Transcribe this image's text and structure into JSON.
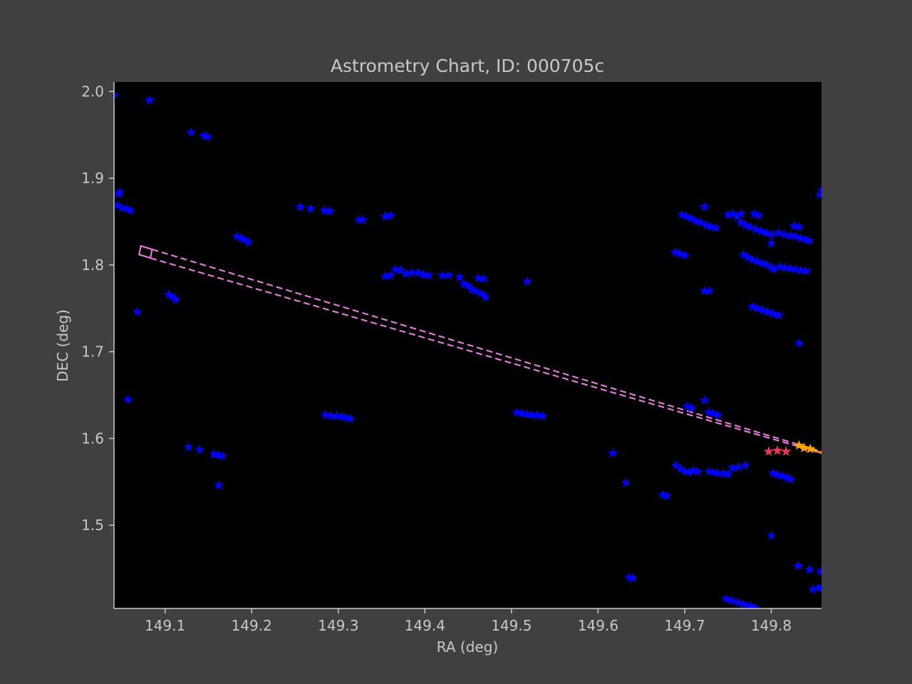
{
  "chart_data": {
    "type": "scatter",
    "title": "Astrometry Chart, ID: 000705c",
    "xlabel": "RA (deg)",
    "ylabel": "DEC (deg)",
    "xlim": [
      149.041,
      149.858
    ],
    "ylim": [
      1.404,
      2.011
    ],
    "xticks": [
      149.1,
      149.2,
      149.3,
      149.4,
      149.5,
      149.6,
      149.7,
      149.8
    ],
    "xtick_labels": [
      "149.1",
      "149.2",
      "149.3",
      "149.4",
      "149.5",
      "149.6",
      "149.7",
      "149.8"
    ],
    "yticks": [
      1.5,
      1.6,
      1.7,
      1.8,
      1.9,
      2.0
    ],
    "ytick_labels": [
      "1.5",
      "1.6",
      "1.7",
      "1.8",
      "1.9",
      "2.0"
    ],
    "plot_background": "#000000",
    "grid": false,
    "colors": {
      "stars": "#0000ff",
      "target_highlight": "#e8365a",
      "track_end": "#ffa500",
      "footprint": "#e07ad8",
      "figure_background": "#404040",
      "text": "#c8c8c8"
    },
    "series": [
      {
        "marker": "star",
        "color": "#0000ff",
        "points": [
          [
            149.041,
            1.996
          ],
          [
            149.082,
            1.99
          ],
          [
            149.13,
            1.953
          ],
          [
            149.145,
            1.949
          ],
          [
            149.149,
            1.948
          ],
          [
            149.046,
            1.882
          ],
          [
            149.048,
            1.884
          ],
          [
            149.045,
            1.869
          ],
          [
            149.05,
            1.866
          ],
          [
            149.055,
            1.865
          ],
          [
            149.06,
            1.863
          ],
          [
            149.068,
            1.746
          ],
          [
            149.057,
            1.645
          ],
          [
            149.104,
            1.766
          ],
          [
            149.108,
            1.764
          ],
          [
            149.112,
            1.76
          ],
          [
            149.183,
            1.833
          ],
          [
            149.188,
            1.831
          ],
          [
            149.192,
            1.829
          ],
          [
            149.196,
            1.826
          ],
          [
            149.127,
            1.59
          ],
          [
            149.14,
            1.587
          ],
          [
            149.156,
            1.582
          ],
          [
            149.162,
            1.581
          ],
          [
            149.166,
            1.58
          ],
          [
            149.162,
            1.546
          ],
          [
            149.256,
            1.867
          ],
          [
            149.268,
            1.865
          ],
          [
            149.284,
            1.863
          ],
          [
            149.29,
            1.862
          ],
          [
            149.324,
            1.852
          ],
          [
            149.328,
            1.852
          ],
          [
            149.354,
            1.856
          ],
          [
            149.36,
            1.857
          ],
          [
            149.285,
            1.627
          ],
          [
            149.292,
            1.626
          ],
          [
            149.298,
            1.626
          ],
          [
            149.304,
            1.625
          ],
          [
            149.309,
            1.624
          ],
          [
            149.314,
            1.623
          ],
          [
            149.354,
            1.787
          ],
          [
            149.36,
            1.788
          ],
          [
            149.366,
            1.795
          ],
          [
            149.372,
            1.794
          ],
          [
            149.378,
            1.79
          ],
          [
            149.385,
            1.791
          ],
          [
            149.392,
            1.791
          ],
          [
            149.398,
            1.789
          ],
          [
            149.404,
            1.788
          ],
          [
            149.42,
            1.788
          ],
          [
            149.427,
            1.788
          ],
          [
            149.44,
            1.786
          ],
          [
            149.445,
            1.778
          ],
          [
            149.45,
            1.776
          ],
          [
            149.454,
            1.772
          ],
          [
            149.458,
            1.77
          ],
          [
            149.462,
            1.785
          ],
          [
            149.468,
            1.784
          ],
          [
            149.465,
            1.767
          ],
          [
            149.47,
            1.763
          ],
          [
            149.518,
            1.781
          ],
          [
            149.506,
            1.63
          ],
          [
            149.512,
            1.629
          ],
          [
            149.518,
            1.628
          ],
          [
            149.524,
            1.627
          ],
          [
            149.53,
            1.627
          ],
          [
            149.536,
            1.626
          ],
          [
            149.617,
            1.583
          ],
          [
            149.632,
            1.549
          ],
          [
            149.636,
            1.44
          ],
          [
            149.64,
            1.439
          ],
          [
            149.675,
            1.535
          ],
          [
            149.679,
            1.534
          ],
          [
            149.697,
            1.858
          ],
          [
            149.702,
            1.856
          ],
          [
            149.707,
            1.854
          ],
          [
            149.712,
            1.851
          ],
          [
            149.718,
            1.849
          ],
          [
            149.723,
            1.867
          ],
          [
            149.725,
            1.846
          ],
          [
            149.73,
            1.844
          ],
          [
            149.736,
            1.843
          ],
          [
            149.689,
            1.815
          ],
          [
            149.694,
            1.813
          ],
          [
            149.7,
            1.811
          ],
          [
            149.723,
            1.77
          ],
          [
            149.728,
            1.77
          ],
          [
            149.75,
            1.858
          ],
          [
            149.755,
            1.859
          ],
          [
            149.76,
            1.856
          ],
          [
            149.765,
            1.859
          ],
          [
            149.78,
            1.859
          ],
          [
            149.785,
            1.857
          ],
          [
            149.765,
            1.849
          ],
          [
            149.77,
            1.846
          ],
          [
            149.775,
            1.844
          ],
          [
            149.782,
            1.841
          ],
          [
            149.788,
            1.839
          ],
          [
            149.794,
            1.837
          ],
          [
            149.8,
            1.835
          ],
          [
            149.8,
            1.825
          ],
          [
            149.808,
            1.837
          ],
          [
            149.815,
            1.835
          ],
          [
            149.822,
            1.834
          ],
          [
            149.826,
            1.845
          ],
          [
            149.832,
            1.844
          ],
          [
            149.828,
            1.833
          ],
          [
            149.834,
            1.831
          ],
          [
            149.84,
            1.829
          ],
          [
            149.844,
            1.828
          ],
          [
            149.768,
            1.812
          ],
          [
            149.773,
            1.809
          ],
          [
            149.778,
            1.806
          ],
          [
            149.784,
            1.804
          ],
          [
            149.79,
            1.802
          ],
          [
            149.795,
            1.8
          ],
          [
            149.8,
            1.797
          ],
          [
            149.803,
            1.795
          ],
          [
            149.81,
            1.798
          ],
          [
            149.816,
            1.797
          ],
          [
            149.822,
            1.796
          ],
          [
            149.828,
            1.795
          ],
          [
            149.834,
            1.794
          ],
          [
            149.84,
            1.793
          ],
          [
            149.778,
            1.752
          ],
          [
            149.784,
            1.75
          ],
          [
            149.79,
            1.748
          ],
          [
            149.796,
            1.746
          ],
          [
            149.802,
            1.744
          ],
          [
            149.808,
            1.742
          ],
          [
            149.832,
            1.71
          ],
          [
            149.856,
            1.881
          ],
          [
            149.859,
            1.887
          ],
          [
            149.723,
            1.644
          ],
          [
            149.703,
            1.637
          ],
          [
            149.708,
            1.635
          ],
          [
            149.728,
            1.63
          ],
          [
            149.733,
            1.629
          ],
          [
            149.738,
            1.627
          ],
          [
            149.69,
            1.569
          ],
          [
            149.695,
            1.565
          ],
          [
            149.7,
            1.562
          ],
          [
            149.705,
            1.561
          ],
          [
            149.71,
            1.563
          ],
          [
            149.715,
            1.562
          ],
          [
            149.728,
            1.562
          ],
          [
            149.733,
            1.561
          ],
          [
            149.738,
            1.56
          ],
          [
            149.745,
            1.56
          ],
          [
            149.75,
            1.559
          ],
          [
            149.755,
            1.566
          ],
          [
            149.762,
            1.567
          ],
          [
            149.77,
            1.569
          ],
          [
            149.802,
            1.56
          ],
          [
            149.807,
            1.558
          ],
          [
            149.812,
            1.557
          ],
          [
            149.818,
            1.555
          ],
          [
            149.822,
            1.553
          ],
          [
            149.8,
            1.488
          ],
          [
            149.831,
            1.453
          ],
          [
            149.844,
            1.449
          ],
          [
            149.857,
            1.447
          ],
          [
            149.848,
            1.426
          ],
          [
            149.855,
            1.428
          ],
          [
            149.748,
            1.415
          ],
          [
            149.755,
            1.413
          ],
          [
            149.762,
            1.411
          ],
          [
            149.768,
            1.409
          ],
          [
            149.775,
            1.407
          ],
          [
            149.781,
            1.405
          ]
        ]
      },
      {
        "marker": "star",
        "color": "#e8365a",
        "points": [
          [
            149.797,
            1.585
          ],
          [
            149.807,
            1.586
          ],
          [
            149.817,
            1.585
          ]
        ]
      },
      {
        "marker": "star",
        "color": "#ffa500",
        "points": [
          [
            149.832,
            1.592
          ],
          [
            149.838,
            1.589
          ],
          [
            149.845,
            1.588
          ]
        ]
      }
    ],
    "track": {
      "color": "#ffa500",
      "points": [
        [
          149.832,
          1.592
        ],
        [
          149.845,
          1.589
        ],
        [
          149.858,
          1.583
        ]
      ]
    },
    "footprint": {
      "color": "#e07ad8",
      "style": "dashed",
      "box": [
        [
          149.072,
          1.822
        ],
        [
          149.085,
          1.818
        ],
        [
          149.083,
          1.808
        ],
        [
          149.07,
          1.812
        ]
      ],
      "upper_line": [
        [
          149.085,
          1.818
        ],
        [
          149.858,
          1.585
        ]
      ],
      "lower_line": [
        [
          149.083,
          1.808
        ],
        [
          149.858,
          1.583
        ]
      ]
    }
  }
}
